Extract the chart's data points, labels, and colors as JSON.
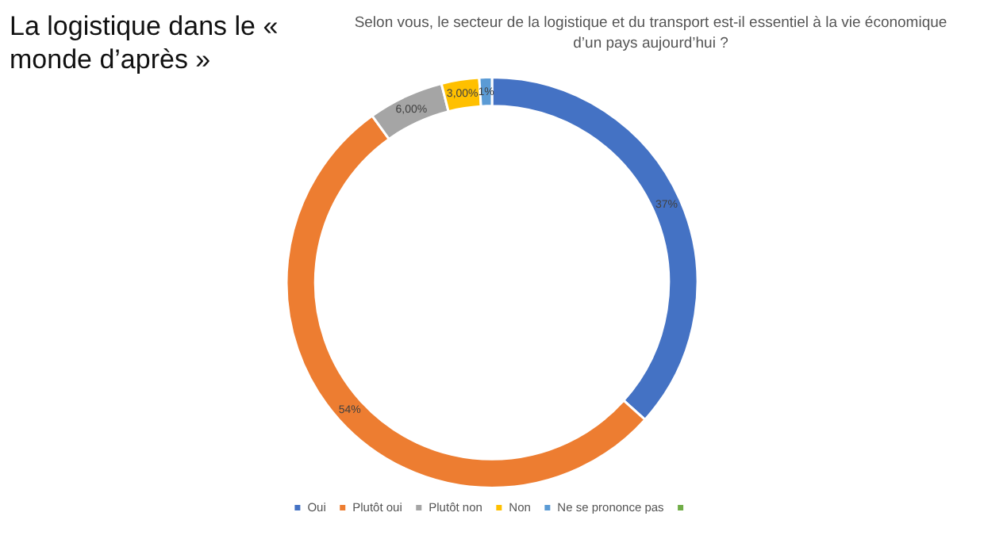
{
  "chart_data": {
    "type": "donut",
    "title": "La logistique dans le « monde d’après »",
    "subtitle": "Selon vous, le secteur de la logistique et du transport est-il essentiel à la vie économique d’un pays aujourd’hui ?",
    "categories": [
      "Oui",
      "Plutôt oui",
      "Plutôt non",
      "Non",
      "Ne se prononce pas",
      null
    ],
    "values": [
      37,
      54,
      6,
      3,
      1,
      0
    ],
    "value_labels": [
      "37%",
      "54%",
      "6,00%",
      "3,00%",
      "1%",
      null
    ],
    "colors": [
      "#4472c4",
      "#ed7d31",
      "#a5a5a5",
      "#ffc000",
      "#5b9bd5",
      "#70ad47"
    ],
    "legend": "bottom"
  }
}
